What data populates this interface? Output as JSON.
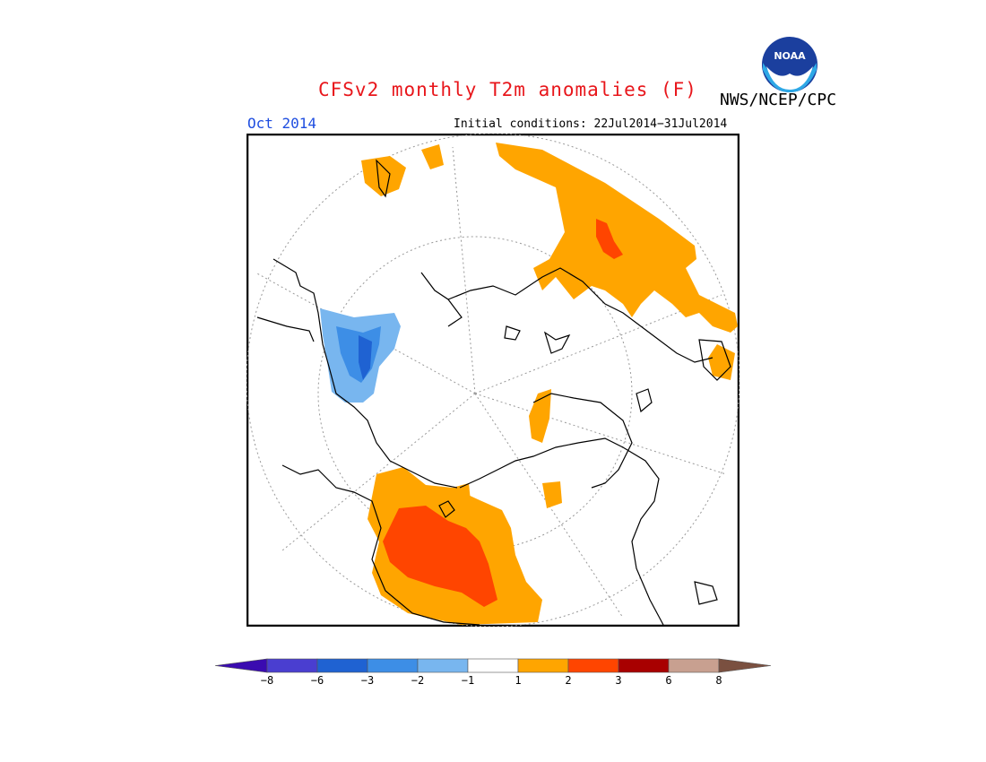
{
  "title": "CFSv2 monthly T2m anomalies (F)",
  "organization": "NWS/NCEP/CPC",
  "logo_text": "NOAA",
  "period": "Oct 2014",
  "initial_conditions": "Initial conditions: 22Jul2014−31Jul2014",
  "colorbar": {
    "labels": [
      "−8",
      "−6",
      "−3",
      "−2",
      "−1",
      "1",
      "2",
      "3",
      "6",
      "8"
    ],
    "colors": [
      "#3a0bb0",
      "#4a3ed0",
      "#1f62d2",
      "#3d8ee6",
      "#78b6ef",
      "#ffffff",
      "#ffa500",
      "#ff4500",
      "#a80000",
      "#c8a090",
      "#7a5040"
    ]
  },
  "map_colors": {
    "warm1": "#ffa500",
    "warm2": "#ff4500",
    "cool1": "#78b6ef",
    "cool2": "#3d8ee6",
    "cool3": "#1f62d2",
    "coast": "#000000",
    "grid": "#999999"
  }
}
